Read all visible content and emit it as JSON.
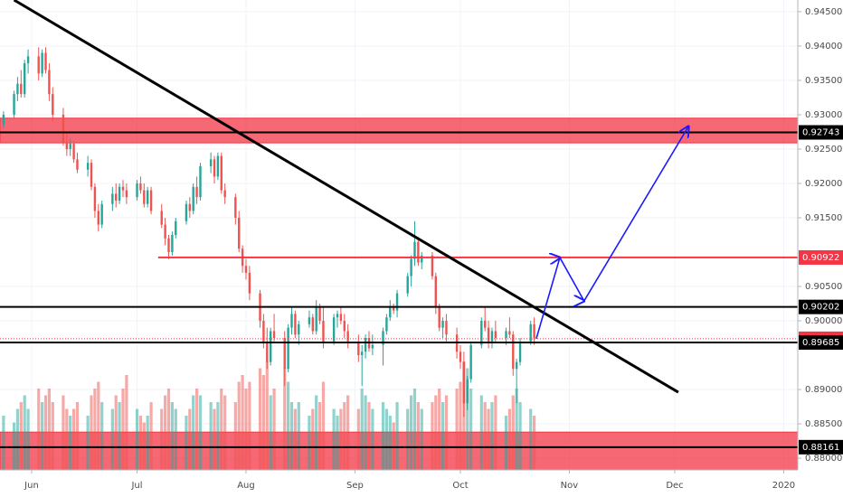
{
  "chart_data": {
    "type": "candlestick",
    "xlim": [
      -9,
      218
    ],
    "ylim": [
      0.8783,
      0.9467
    ],
    "xticks": [
      {
        "value": 0,
        "label": "Jun"
      },
      {
        "value": 30,
        "label": "Jul"
      },
      {
        "value": 61,
        "label": "Aug"
      },
      {
        "value": 92,
        "label": "Sep"
      },
      {
        "value": 122,
        "label": "Oct"
      },
      {
        "value": 153,
        "label": "Nov"
      },
      {
        "value": 183,
        "label": "Dec"
      },
      {
        "value": 214,
        "label": "2020"
      }
    ],
    "yticks": [
      {
        "value": 0.945,
        "label": "0.94500"
      },
      {
        "value": 0.94,
        "label": "0.94000"
      },
      {
        "value": 0.935,
        "label": "0.93500"
      },
      {
        "value": 0.93,
        "label": "0.93000"
      },
      {
        "value": 0.925,
        "label": "0.92500"
      },
      {
        "value": 0.92,
        "label": "0.92000"
      },
      {
        "value": 0.915,
        "label": "0.91500"
      },
      {
        "value": 0.905,
        "label": "0.90500"
      },
      {
        "value": 0.9,
        "label": "0.90000"
      },
      {
        "value": 0.89,
        "label": "0.89000"
      },
      {
        "value": 0.885,
        "label": "0.88500"
      },
      {
        "value": 0.88,
        "label": "0.88000"
      }
    ],
    "grid": true,
    "up_color": "#26a69a",
    "down_color": "#ef5350",
    "candles": [
      [
        -8,
        0.9285,
        0.9305,
        0.928,
        0.93,
        40
      ],
      [
        -5,
        0.93,
        0.9335,
        0.9295,
        0.933,
        35
      ],
      [
        -4,
        0.933,
        0.9355,
        0.932,
        0.9345,
        45
      ],
      [
        -3,
        0.9345,
        0.9365,
        0.9325,
        0.933,
        50
      ],
      [
        -2,
        0.933,
        0.938,
        0.9325,
        0.9375,
        55
      ],
      [
        -1,
        0.9375,
        0.9395,
        0.936,
        0.9385,
        45
      ],
      [
        2,
        0.9385,
        0.9398,
        0.935,
        0.936,
        60
      ],
      [
        3,
        0.936,
        0.9395,
        0.9355,
        0.939,
        50
      ],
      [
        4,
        0.939,
        0.9398,
        0.936,
        0.9365,
        55
      ],
      [
        5,
        0.9365,
        0.9375,
        0.932,
        0.933,
        60
      ],
      [
        6,
        0.933,
        0.934,
        0.929,
        0.93,
        50
      ],
      [
        9,
        0.93,
        0.931,
        0.9255,
        0.926,
        55
      ],
      [
        10,
        0.926,
        0.9275,
        0.924,
        0.925,
        45
      ],
      [
        11,
        0.925,
        0.9265,
        0.924,
        0.9258,
        40
      ],
      [
        12,
        0.9258,
        0.9262,
        0.923,
        0.9235,
        45
      ],
      [
        13,
        0.9235,
        0.9245,
        0.9215,
        0.922,
        50
      ],
      [
        16,
        0.922,
        0.924,
        0.921,
        0.923,
        40
      ],
      [
        17,
        0.923,
        0.9235,
        0.919,
        0.9195,
        55
      ],
      [
        18,
        0.9195,
        0.92,
        0.915,
        0.916,
        60
      ],
      [
        19,
        0.916,
        0.917,
        0.913,
        0.914,
        65
      ],
      [
        20,
        0.914,
        0.9175,
        0.9135,
        0.917,
        50
      ],
      [
        23,
        0.917,
        0.9195,
        0.916,
        0.9185,
        45
      ],
      [
        24,
        0.9185,
        0.92,
        0.9165,
        0.9175,
        55
      ],
      [
        25,
        0.9175,
        0.92,
        0.917,
        0.9195,
        50
      ],
      [
        26,
        0.9195,
        0.9205,
        0.918,
        0.919,
        60
      ],
      [
        27,
        0.919,
        0.92,
        0.917,
        0.918,
        70
      ],
      [
        30,
        0.918,
        0.9205,
        0.9175,
        0.92,
        45
      ],
      [
        31,
        0.92,
        0.921,
        0.9185,
        0.919,
        40
      ],
      [
        32,
        0.919,
        0.92,
        0.9165,
        0.917,
        35
      ],
      [
        33,
        0.917,
        0.9195,
        0.9165,
        0.919,
        40
      ],
      [
        34,
        0.919,
        0.9195,
        0.9155,
        0.916,
        50
      ],
      [
        37,
        0.916,
        0.917,
        0.9135,
        0.914,
        45
      ],
      [
        38,
        0.914,
        0.915,
        0.911,
        0.912,
        55
      ],
      [
        39,
        0.912,
        0.9125,
        0.909,
        0.91,
        60
      ],
      [
        40,
        0.91,
        0.913,
        0.9095,
        0.9125,
        50
      ],
      [
        41,
        0.9125,
        0.915,
        0.912,
        0.9145,
        45
      ],
      [
        44,
        0.9145,
        0.9175,
        0.914,
        0.917,
        40
      ],
      [
        45,
        0.917,
        0.918,
        0.915,
        0.916,
        45
      ],
      [
        46,
        0.916,
        0.92,
        0.9155,
        0.9195,
        55
      ],
      [
        47,
        0.9195,
        0.921,
        0.917,
        0.918,
        60
      ],
      [
        48,
        0.918,
        0.923,
        0.9175,
        0.9225,
        55
      ],
      [
        51,
        0.9225,
        0.9245,
        0.9215,
        0.9235,
        50
      ],
      [
        52,
        0.9235,
        0.924,
        0.92,
        0.921,
        45
      ],
      [
        53,
        0.921,
        0.9245,
        0.9205,
        0.924,
        50
      ],
      [
        54,
        0.924,
        0.9245,
        0.9185,
        0.919,
        60
      ],
      [
        55,
        0.919,
        0.92,
        0.917,
        0.918,
        55
      ],
      [
        58,
        0.918,
        0.9185,
        0.914,
        0.915,
        50
      ],
      [
        59,
        0.915,
        0.916,
        0.91,
        0.9105,
        65
      ],
      [
        60,
        0.9105,
        0.911,
        0.907,
        0.908,
        70
      ],
      [
        61,
        0.908,
        0.909,
        0.906,
        0.907,
        60
      ],
      [
        62,
        0.907,
        0.908,
        0.903,
        0.904,
        65
      ],
      [
        65,
        0.904,
        0.9045,
        0.899,
        0.9,
        75
      ],
      [
        66,
        0.9,
        0.901,
        0.896,
        0.897,
        70
      ],
      [
        67,
        0.897,
        0.899,
        0.893,
        0.894,
        80
      ],
      [
        68,
        0.894,
        0.899,
        0.8935,
        0.8985,
        55
      ],
      [
        69,
        0.8985,
        0.901,
        0.897,
        0.8975,
        60
      ],
      [
        72,
        0.8975,
        0.8985,
        0.8905,
        0.893,
        75
      ],
      [
        73,
        0.893,
        0.8995,
        0.8925,
        0.899,
        65
      ],
      [
        74,
        0.899,
        0.902,
        0.898,
        0.901,
        50
      ],
      [
        75,
        0.901,
        0.9015,
        0.8975,
        0.898,
        45
      ],
      [
        76,
        0.898,
        0.9,
        0.8965,
        0.8995,
        50
      ],
      [
        79,
        0.8995,
        0.9015,
        0.899,
        0.9005,
        40
      ],
      [
        80,
        0.9005,
        0.901,
        0.898,
        0.8985,
        45
      ],
      [
        81,
        0.8985,
        0.903,
        0.898,
        0.902,
        55
      ],
      [
        82,
        0.902,
        0.9025,
        0.8995,
        0.9,
        50
      ],
      [
        83,
        0.9,
        0.902,
        0.896,
        0.897,
        65
      ],
      [
        86,
        0.897,
        0.901,
        0.8965,
        0.9005,
        45
      ],
      [
        87,
        0.9005,
        0.9015,
        0.899,
        0.901,
        40
      ],
      [
        88,
        0.901,
        0.902,
        0.8995,
        0.9,
        45
      ],
      [
        89,
        0.9,
        0.901,
        0.8975,
        0.8985,
        50
      ],
      [
        90,
        0.8985,
        0.8995,
        0.896,
        0.897,
        55
      ],
      [
        93,
        0.897,
        0.898,
        0.894,
        0.895,
        45
      ],
      [
        94,
        0.895,
        0.8965,
        0.8905,
        0.8955,
        60
      ],
      [
        95,
        0.8955,
        0.898,
        0.8945,
        0.8975,
        55
      ],
      [
        96,
        0.8975,
        0.8985,
        0.8955,
        0.896,
        50
      ],
      [
        97,
        0.896,
        0.898,
        0.895,
        0.8965,
        45
      ],
      [
        100,
        0.8965,
        0.899,
        0.8935,
        0.8985,
        50
      ],
      [
        101,
        0.8985,
        0.901,
        0.898,
        0.9005,
        45
      ],
      [
        102,
        0.9005,
        0.903,
        0.9,
        0.902,
        40
      ],
      [
        103,
        0.902,
        0.9025,
        0.901,
        0.9015,
        35
      ],
      [
        104,
        0.9015,
        0.9045,
        0.9005,
        0.904,
        50
      ],
      [
        107,
        0.904,
        0.907,
        0.9035,
        0.9065,
        45
      ],
      [
        108,
        0.9065,
        0.9095,
        0.905,
        0.909,
        55
      ],
      [
        109,
        0.909,
        0.9145,
        0.908,
        0.9115,
        60
      ],
      [
        110,
        0.9115,
        0.912,
        0.908,
        0.9085,
        50
      ],
      [
        111,
        0.9085,
        0.91,
        0.9075,
        0.9095,
        45
      ],
      [
        114,
        0.9095,
        0.91,
        0.906,
        0.9065,
        50
      ],
      [
        115,
        0.9065,
        0.907,
        0.901,
        0.902,
        55
      ],
      [
        116,
        0.902,
        0.9025,
        0.8985,
        0.899,
        60
      ],
      [
        117,
        0.899,
        0.9005,
        0.8975,
        0.9,
        50
      ],
      [
        118,
        0.9,
        0.901,
        0.897,
        0.898,
        55
      ],
      [
        121,
        0.898,
        0.899,
        0.8945,
        0.8955,
        60
      ],
      [
        122,
        0.8955,
        0.8965,
        0.893,
        0.894,
        65
      ],
      [
        123,
        0.894,
        0.8955,
        0.886,
        0.888,
        80
      ],
      [
        124,
        0.888,
        0.892,
        0.887,
        0.8915,
        75
      ],
      [
        125,
        0.8915,
        0.897,
        0.891,
        0.8965,
        60
      ],
      [
        128,
        0.8965,
        0.9005,
        0.896,
        0.9,
        55
      ],
      [
        129,
        0.9,
        0.902,
        0.8985,
        0.899,
        50
      ],
      [
        130,
        0.899,
        0.9,
        0.896,
        0.897,
        45
      ],
      [
        131,
        0.897,
        0.899,
        0.896,
        0.8985,
        50
      ],
      [
        132,
        0.8985,
        0.9,
        0.897,
        0.8975,
        55
      ],
      [
        135,
        0.8975,
        0.899,
        0.8965,
        0.8985,
        40
      ],
      [
        136,
        0.8985,
        0.9005,
        0.8975,
        0.898,
        45
      ],
      [
        137,
        0.898,
        0.8985,
        0.892,
        0.893,
        55
      ],
      [
        138,
        0.893,
        0.8945,
        0.888,
        0.894,
        60
      ],
      [
        139,
        0.894,
        0.8975,
        0.8935,
        0.897,
        50
      ],
      [
        142,
        0.897,
        0.9,
        0.8965,
        0.8995,
        45
      ],
      [
        143,
        0.8995,
        0.9005,
        0.8965,
        0.8975,
        40
      ]
    ],
    "zones": [
      {
        "low": 0.9259,
        "high": 0.9295,
        "color": "#f23645"
      },
      {
        "low": 0.8783,
        "high": 0.8838,
        "color": "#f23645"
      }
    ],
    "levels": [
      {
        "value": 0.92743,
        "color": "#000000",
        "from": -9
      },
      {
        "value": 0.90922,
        "color": "#f23645",
        "from": 36
      },
      {
        "value": 0.90202,
        "color": "#000000",
        "from": -9
      },
      {
        "value": 0.89739,
        "color": "#f23645",
        "from": -9,
        "dotted": true
      },
      {
        "value": 0.89685,
        "color": "#000000",
        "from": -9
      },
      {
        "value": 0.88161,
        "color": "#000000",
        "from": -9
      }
    ],
    "trendline": [
      [
        -5,
        0.9467
      ],
      [
        184,
        0.8896
      ]
    ],
    "projection": [
      [
        143.6,
        0.8974
      ],
      [
        150.3,
        0.9092
      ],
      [
        157.2,
        0.9029
      ],
      [
        186.9,
        0.9283
      ]
    ]
  }
}
